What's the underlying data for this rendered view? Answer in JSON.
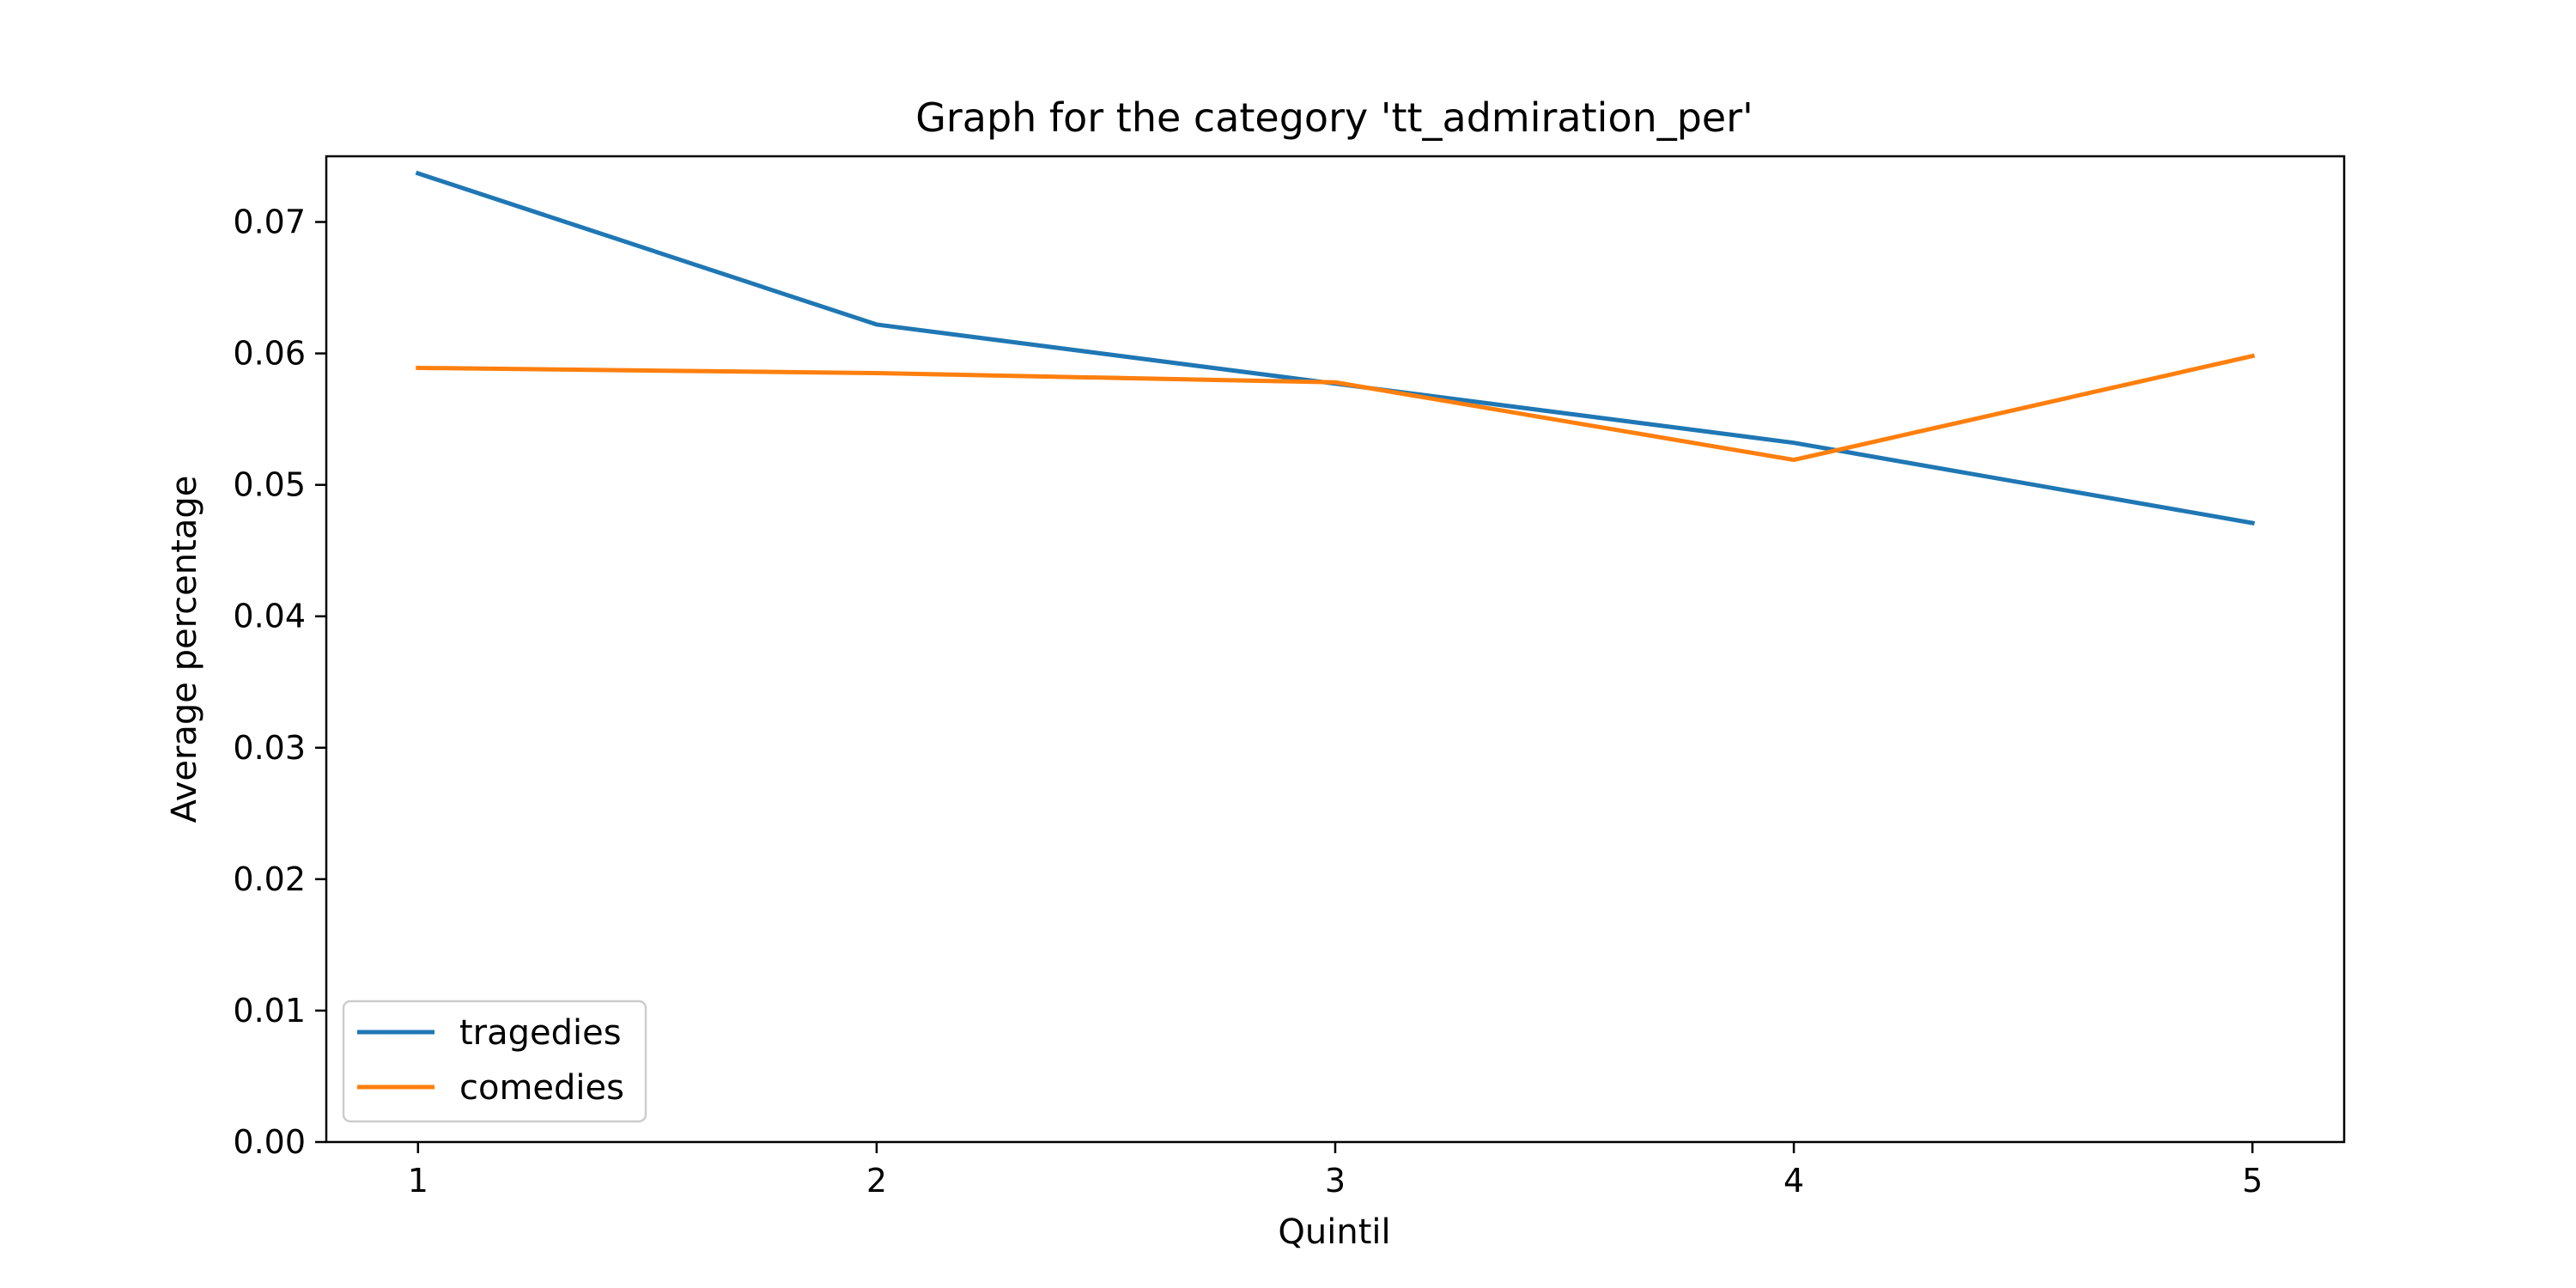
{
  "chart_data": {
    "type": "line",
    "title": "Graph for the category  'tt_admiration_per'",
    "xlabel": "Quintil",
    "ylabel": "Average percentage",
    "x": [
      1,
      2,
      3,
      4,
      5
    ],
    "xlim": [
      0.8,
      5.2
    ],
    "ylim": [
      0.0,
      0.075
    ],
    "xticks": [
      "1",
      "2",
      "3",
      "4",
      "5"
    ],
    "yticks": [
      "0.00",
      "0.01",
      "0.02",
      "0.03",
      "0.04",
      "0.05",
      "0.06",
      "0.07"
    ],
    "ytick_values": [
      0.0,
      0.01,
      0.02,
      0.03,
      0.04,
      0.05,
      0.06,
      0.07
    ],
    "grid": false,
    "legend_position": "lower-left",
    "series": [
      {
        "name": "tragedies",
        "color": "#1f77b4",
        "values": [
          0.0737,
          0.0622,
          0.0577,
          0.0532,
          0.0471
        ]
      },
      {
        "name": "comedies",
        "color": "#ff7f0e",
        "values": [
          0.0589,
          0.0585,
          0.0578,
          0.0519,
          0.0598
        ]
      }
    ]
  }
}
